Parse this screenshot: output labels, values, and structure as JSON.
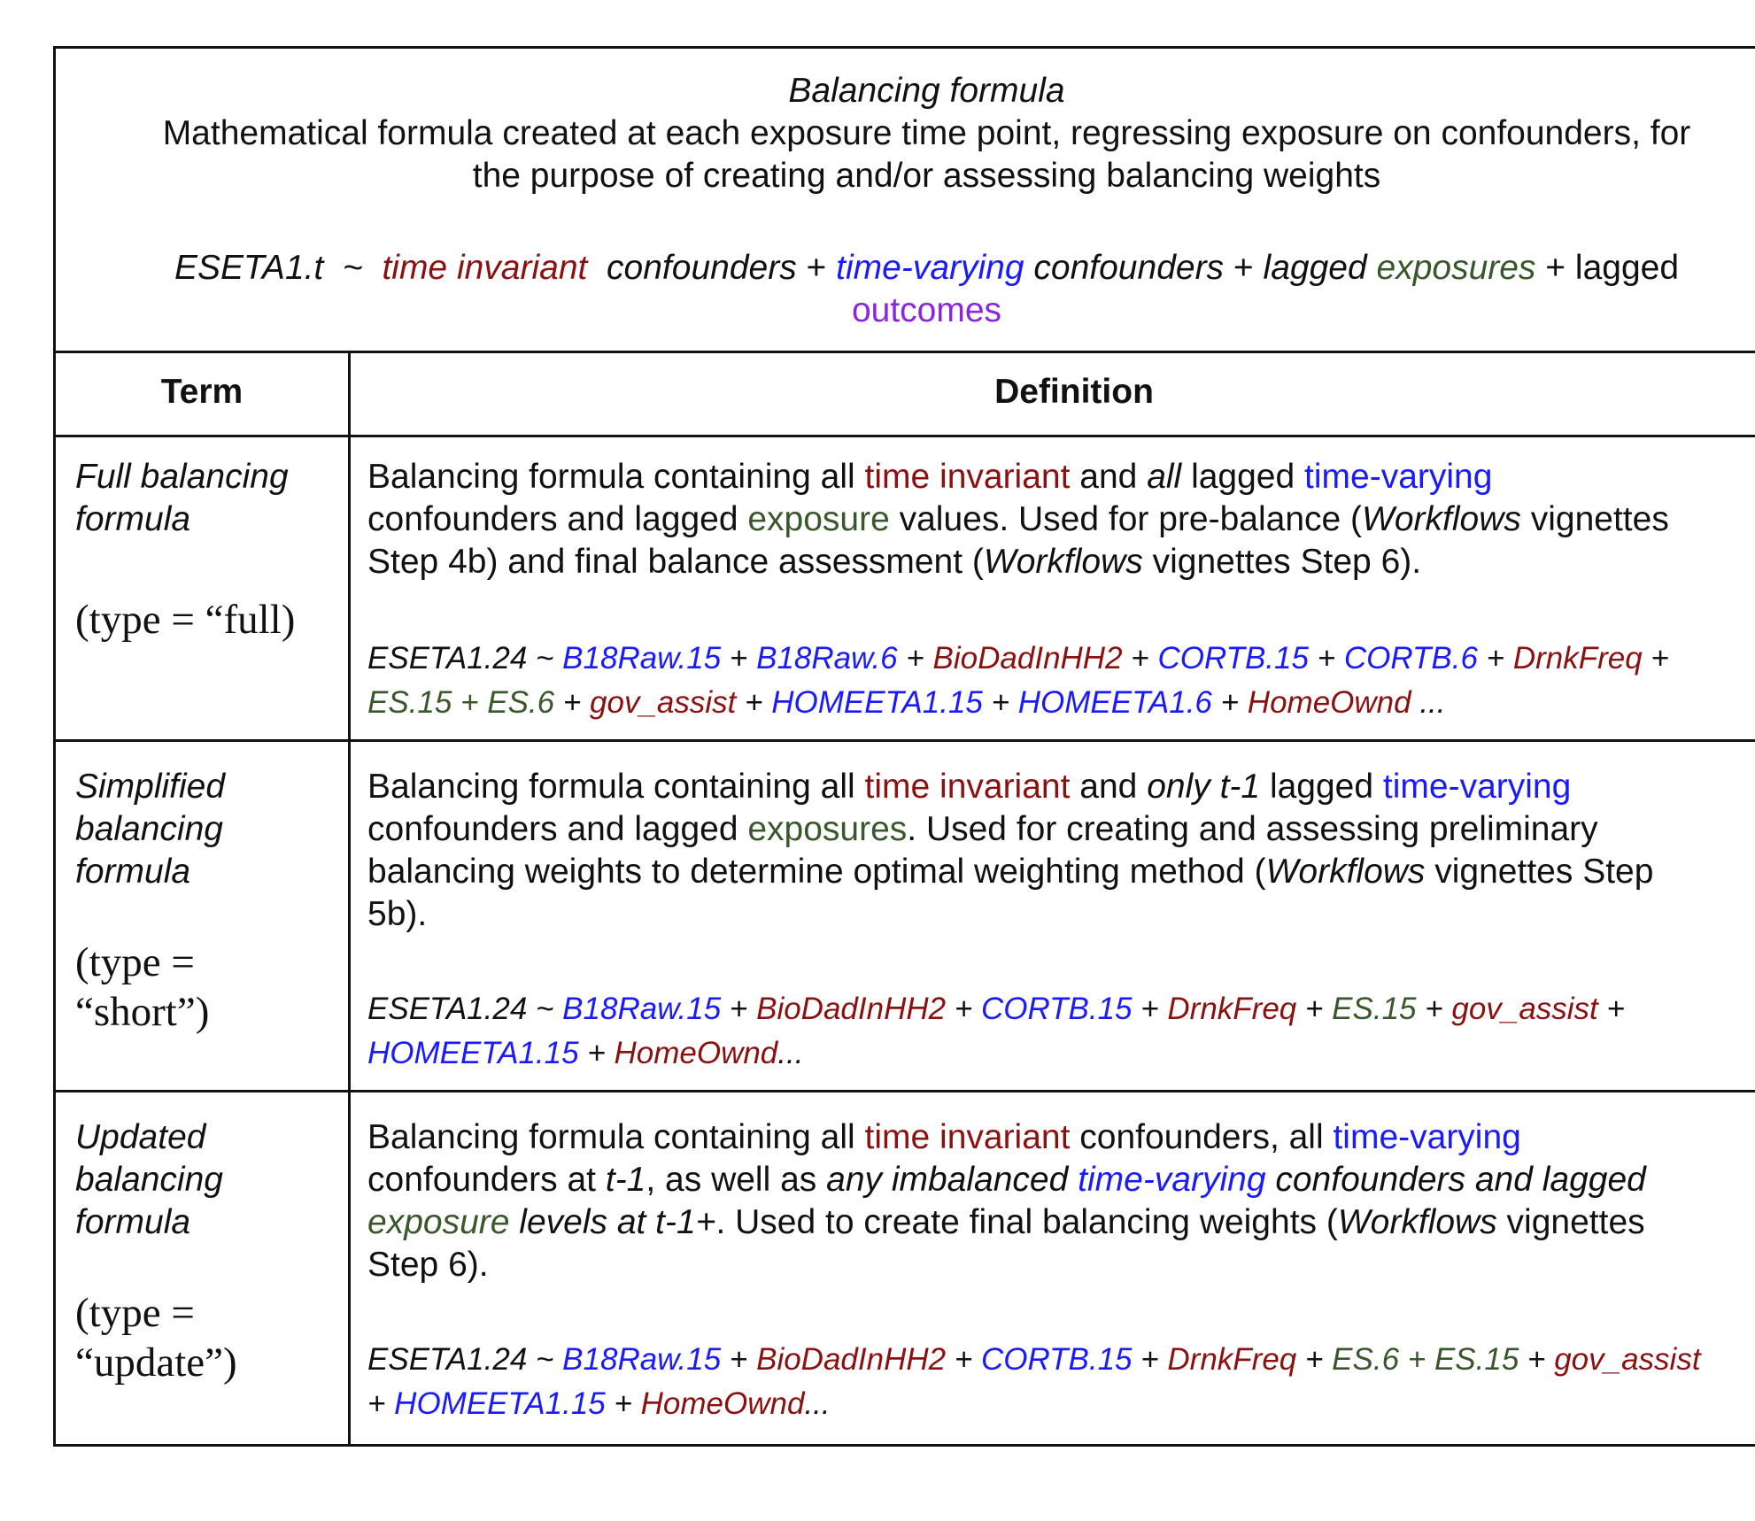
{
  "header": {
    "title": "Balancing formula",
    "description_line1": "Mathematical formula created at each exposure time point, regressing exposure on confounders, for",
    "description_line2": "the purpose of creating and/or assessing balancing weights",
    "formula": {
      "lhs": "ESETA1.t",
      "tilde": "~",
      "time_invariant": "time invariant",
      "confounders1": "confounders",
      "plus": "+",
      "time_varying": "time-varying",
      "confounders2": "confounders",
      "lagged": "lagged",
      "exposures": "exposures",
      "lagged2": "lagged",
      "outcomes": "outcomes"
    }
  },
  "columns": {
    "term": "Term",
    "definition": "Definition"
  },
  "rows": [
    {
      "term_line1": "Full balancing",
      "term_line2": "formula",
      "type_line1": "(type = “full)",
      "def": {
        "l1a": "Balancing formula containing all ",
        "l1b": "time invariant",
        "l1c": " and ",
        "l1d": "all",
        "l1e": " lagged ",
        "l1f": "time-varying",
        "l2a": "confounders and lagged ",
        "l2b": "exposure",
        "l2c": " values. Used for pre-balance (",
        "l2d": "Workflows",
        "l2e": " vignettes",
        "l3a": "Step 4b) and final balance assessment (",
        "l3b": "Workflows",
        "l3c": " vignettes Step 6)."
      },
      "formula_terms_line1": [
        "ESETA1.24 ~ ",
        "B18Raw.15",
        " + ",
        "B18Raw.6",
        " + ",
        "BioDadInHH2",
        " + ",
        "CORTB.15",
        " + ",
        "CORTB.6",
        " + ",
        "DrnkFreq",
        " +"
      ],
      "formula_terms_line2": [
        "ES.15 + ES.6",
        " + ",
        "gov_assist",
        " + ",
        "HOMEETA1.15",
        " + ",
        "HOMEETA1.6",
        " + ",
        "HomeOwnd",
        " ..."
      ]
    },
    {
      "term_line1": "Simplified",
      "term_line2": "balancing",
      "term_line3": "formula",
      "type_line1": "(type =",
      "type_line2": "“short”)",
      "def": {
        "l1a": "Balancing formula containing all ",
        "l1b": "time invariant",
        "l1c": " and ",
        "l1d": "only t-1",
        "l1e": " lagged ",
        "l1f": "time-varying",
        "l2a": "confounders and lagged ",
        "l2b": "exposures",
        "l2c": ". Used for creating and assessing preliminary",
        "l3a": "balancing weights to determine optimal weighting method (",
        "l3b": "Workflows",
        "l3c": " vignettes Step",
        "l4a": "5b)."
      },
      "formula_terms_line1": [
        "ESETA1.24 ~ ",
        "B18Raw.15",
        "  + ",
        "BioDadInHH2",
        " + ",
        "CORTB.15",
        " + ",
        "DrnkFreq",
        " + ",
        "ES.15",
        " + ",
        "gov_assist",
        " +"
      ],
      "formula_terms_line2": [
        "HOMEETA1.15",
        "  + ",
        "HomeOwnd",
        "..."
      ]
    },
    {
      "term_line1": "Updated",
      "term_line2": "balancing",
      "term_line3": "formula",
      "type_line1": "(type =",
      "type_line2": "“update”)",
      "def": {
        "l1a": "Balancing formula containing all ",
        "l1b": "time invariant",
        "l1c": " confounders, all ",
        "l1d": "time-varying",
        "l2a": "confounders at ",
        "l2b": "t-1",
        "l2c": ", as well as ",
        "l2d": "any imbalanced ",
        "l2e": "time-varying",
        "l2f": " confounders and lagged",
        "l3a": "exposure",
        "l3b": " levels at t-1+",
        "l3c": ". Used to create final balancing weights (",
        "l3d": "Workflows",
        "l3e": " vignettes",
        "l4a": "Step 6)."
      },
      "formula_terms_line1": [
        "ESETA1.24 ~ ",
        "B18Raw.15",
        "  + ",
        "BioDadInHH2",
        " + ",
        "CORTB.15",
        " + ",
        "DrnkFreq",
        " + ",
        "ES.6 + ES.15",
        " + ",
        "gov_assist"
      ],
      "formula_terms_line2": [
        "+ ",
        "HOMEETA1.15",
        "  + ",
        "HomeOwnd",
        "..."
      ]
    }
  ]
}
